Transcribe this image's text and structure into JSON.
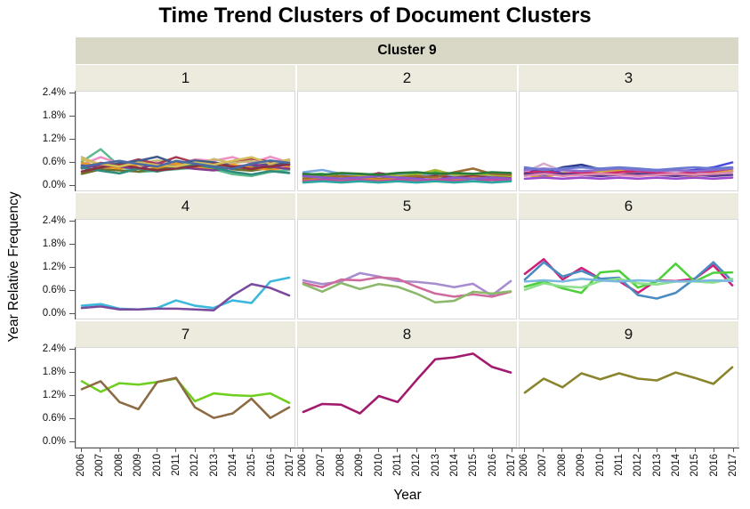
{
  "title": "Time Trend Clusters of Document Clusters",
  "chart_data": {
    "type": "line",
    "title": "Time Trend Clusters of Document Clusters",
    "facet_label": "Cluster 9",
    "xlabel": "Year",
    "ylabel": "Year Relative Frequency",
    "layout": "3x3 small multiples, shared axes, no gridlines, legend none",
    "x": [
      2006,
      2007,
      2008,
      2009,
      2010,
      2011,
      2012,
      2013,
      2014,
      2015,
      2016,
      2017
    ],
    "yticks": [
      "2.4%",
      "1.8%",
      "1.2%",
      "0.6%",
      "0.0%"
    ],
    "ylim": [
      0.0,
      2.4
    ],
    "y_unit": "percent",
    "panels": [
      {
        "label": "1",
        "series": [
          {
            "color": "#5eba8f",
            "values": [
              0.6,
              0.93,
              0.48,
              0.33,
              0.36,
              0.4,
              0.44,
              0.4,
              0.27,
              0.22,
              0.33,
              0.38
            ]
          },
          {
            "color": "#ef8fc4",
            "values": [
              0.52,
              0.72,
              0.55,
              0.6,
              0.57,
              0.5,
              0.66,
              0.62,
              0.72,
              0.56,
              0.73,
              0.58
            ]
          },
          {
            "color": "#c9b873",
            "values": [
              0.72,
              0.5,
              0.6,
              0.55,
              0.63,
              0.57,
              0.5,
              0.67,
              0.56,
              0.62,
              0.47,
              0.63
            ]
          },
          {
            "color": "#a83a52",
            "values": [
              0.45,
              0.57,
              0.52,
              0.66,
              0.54,
              0.72,
              0.58,
              0.5,
              0.62,
              0.68,
              0.6,
              0.53
            ]
          },
          {
            "color": "#3d5c8c",
            "values": [
              0.5,
              0.44,
              0.56,
              0.62,
              0.73,
              0.55,
              0.63,
              0.58,
              0.5,
              0.46,
              0.56,
              0.52
            ]
          },
          {
            "color": "#6e6e28",
            "values": [
              0.28,
              0.4,
              0.37,
              0.34,
              0.42,
              0.47,
              0.44,
              0.52,
              0.4,
              0.36,
              0.44,
              0.42
            ]
          },
          {
            "color": "#e89820",
            "values": [
              0.57,
              0.47,
              0.42,
              0.52,
              0.44,
              0.55,
              0.47,
              0.41,
              0.52,
              0.44,
              0.38,
              0.46
            ]
          },
          {
            "color": "#833b8f",
            "values": [
              0.42,
              0.52,
              0.47,
              0.41,
              0.55,
              0.47,
              0.41,
              0.37,
              0.45,
              0.53,
              0.47,
              0.41
            ]
          },
          {
            "color": "#2f8c7d",
            "values": [
              0.44,
              0.36,
              0.29,
              0.42,
              0.34,
              0.45,
              0.52,
              0.44,
              0.33,
              0.26,
              0.35,
              0.3
            ]
          },
          {
            "color": "#8c2f42",
            "values": [
              0.34,
              0.45,
              0.52,
              0.44,
              0.37,
              0.42,
              0.48,
              0.55,
              0.47,
              0.41,
              0.48,
              0.52
            ]
          },
          {
            "color": "#d3bd58",
            "values": [
              0.66,
              0.54,
              0.47,
              0.58,
              0.51,
              0.47,
              0.58,
              0.52,
              0.62,
              0.72,
              0.54,
              0.66
            ]
          },
          {
            "color": "#4b6ba3",
            "values": [
              0.47,
              0.55,
              0.62,
              0.54,
              0.47,
              0.62,
              0.55,
              0.47,
              0.41,
              0.55,
              0.63,
              0.57
            ]
          }
        ]
      },
      {
        "label": "2",
        "series": [
          {
            "color": "#2fae3c",
            "values": [
              0.25,
              0.28,
              0.22,
              0.25,
              0.28,
              0.22,
              0.28,
              0.32,
              0.25,
              0.28,
              0.25,
              0.28
            ]
          },
          {
            "color": "#1f9e8e",
            "values": [
              0.12,
              0.15,
              0.12,
              0.15,
              0.12,
              0.15,
              0.12,
              0.1,
              0.12,
              0.15,
              0.12,
              0.12
            ]
          },
          {
            "color": "#4fd0d0",
            "values": [
              0.18,
              0.22,
              0.18,
              0.15,
              0.22,
              0.28,
              0.18,
              0.22,
              0.18,
              0.22,
              0.18,
              0.15
            ]
          },
          {
            "color": "#7aa8e0",
            "values": [
              0.32,
              0.38,
              0.28,
              0.25,
              0.22,
              0.25,
              0.22,
              0.25,
              0.22,
              0.25,
              0.22,
              0.25
            ]
          },
          {
            "color": "#8c3a4a",
            "values": [
              0.22,
              0.18,
              0.22,
              0.18,
              0.3,
              0.22,
              0.18,
              0.22,
              0.18,
              0.22,
              0.18,
              0.2
            ]
          },
          {
            "color": "#a8b832",
            "values": [
              0.2,
              0.25,
              0.2,
              0.22,
              0.25,
              0.22,
              0.25,
              0.38,
              0.25,
              0.28,
              0.25,
              0.22
            ]
          },
          {
            "color": "#9c6b2f",
            "values": [
              0.15,
              0.18,
              0.22,
              0.18,
              0.15,
              0.18,
              0.22,
              0.18,
              0.32,
              0.42,
              0.28,
              0.25
            ]
          },
          {
            "color": "#cf8c2a",
            "values": [
              0.1,
              0.15,
              0.12,
              0.18,
              0.12,
              0.15,
              0.1,
              0.15,
              0.12,
              0.18,
              0.15,
              0.12
            ]
          },
          {
            "color": "#8c5acf",
            "values": [
              0.22,
              0.18,
              0.15,
              0.18,
              0.22,
              0.18,
              0.15,
              0.12,
              0.18,
              0.15,
              0.18,
              0.15
            ]
          },
          {
            "color": "#c24a9e",
            "values": [
              0.08,
              0.12,
              0.08,
              0.12,
              0.08,
              0.12,
              0.08,
              0.12,
              0.1,
              0.08,
              0.12,
              0.1
            ]
          },
          {
            "color": "#2a7a3c",
            "values": [
              0.28,
              0.25,
              0.3,
              0.28,
              0.25,
              0.3,
              0.32,
              0.28,
              0.3,
              0.28,
              0.32,
              0.3
            ]
          },
          {
            "color": "#2aa8a0",
            "values": [
              0.05,
              0.08,
              0.05,
              0.08,
              0.05,
              0.08,
              0.05,
              0.08,
              0.05,
              0.08,
              0.05,
              0.08
            ]
          }
        ]
      },
      {
        "label": "3",
        "series": [
          {
            "color": "#4a4ae0",
            "values": [
              0.35,
              0.3,
              0.35,
              0.28,
              0.35,
              0.4,
              0.35,
              0.3,
              0.35,
              0.38,
              0.45,
              0.58
            ]
          },
          {
            "color": "#2a3a8c",
            "values": [
              0.4,
              0.32,
              0.45,
              0.52,
              0.4,
              0.38,
              0.35,
              0.38,
              0.35,
              0.32,
              0.38,
              0.35
            ]
          },
          {
            "color": "#d4aed0",
            "values": [
              0.32,
              0.55,
              0.35,
              0.3,
              0.32,
              0.35,
              0.32,
              0.3,
              0.32,
              0.35,
              0.32,
              0.38
            ]
          },
          {
            "color": "#d0a82a",
            "values": [
              0.25,
              0.18,
              0.3,
              0.25,
              0.35,
              0.38,
              0.22,
              0.28,
              0.25,
              0.22,
              0.3,
              0.35
            ]
          },
          {
            "color": "#cf2a6e",
            "values": [
              0.3,
              0.35,
              0.28,
              0.32,
              0.28,
              0.32,
              0.35,
              0.3,
              0.28,
              0.32,
              0.35,
              0.42
            ]
          },
          {
            "color": "#8c6ccf",
            "values": [
              0.38,
              0.42,
              0.38,
              0.35,
              0.38,
              0.42,
              0.38,
              0.35,
              0.38,
              0.35,
              0.38,
              0.42
            ]
          },
          {
            "color": "#5a3a8c",
            "values": [
              0.28,
              0.25,
              0.28,
              0.25,
              0.22,
              0.25,
              0.28,
              0.25,
              0.22,
              0.25,
              0.22,
              0.25
            ]
          },
          {
            "color": "#e08cb0",
            "values": [
              0.22,
              0.28,
              0.22,
              0.25,
              0.28,
              0.25,
              0.22,
              0.25,
              0.28,
              0.25,
              0.28,
              0.32
            ]
          },
          {
            "color": "#6a7acf",
            "values": [
              0.45,
              0.38,
              0.42,
              0.45,
              0.42,
              0.45,
              0.42,
              0.38,
              0.42,
              0.45,
              0.42,
              0.45
            ]
          },
          {
            "color": "#9c4acf",
            "values": [
              0.15,
              0.18,
              0.15,
              0.18,
              0.15,
              0.18,
              0.15,
              0.18,
              0.15,
              0.18,
              0.15,
              0.18
            ]
          }
        ]
      },
      {
        "label": "4",
        "series": [
          {
            "color": "#3cb8dc",
            "values": [
              0.18,
              0.22,
              0.1,
              0.08,
              0.12,
              0.32,
              0.18,
              0.12,
              0.32,
              0.25,
              0.82,
              0.92
            ]
          },
          {
            "color": "#7a4a9c",
            "values": [
              0.12,
              0.16,
              0.08,
              0.08,
              0.1,
              0.1,
              0.08,
              0.06,
              0.45,
              0.75,
              0.65,
              0.45
            ]
          }
        ]
      },
      {
        "label": "5",
        "series": [
          {
            "color": "#a88cd0",
            "values": [
              0.85,
              0.75,
              0.82,
              1.04,
              0.95,
              0.83,
              0.81,
              0.76,
              0.67,
              0.76,
              0.45,
              0.83
            ]
          },
          {
            "color": "#cf6a9c",
            "values": [
              0.78,
              0.67,
              0.87,
              0.85,
              0.93,
              0.89,
              0.68,
              0.5,
              0.42,
              0.48,
              0.42,
              0.55
            ]
          },
          {
            "color": "#8cb86a",
            "values": [
              0.75,
              0.55,
              0.78,
              0.62,
              0.75,
              0.68,
              0.5,
              0.27,
              0.31,
              0.55,
              0.5,
              0.56
            ]
          }
        ]
      },
      {
        "label": "6",
        "series": [
          {
            "color": "#cf1f7a",
            "values": [
              1.02,
              1.41,
              0.87,
              1.18,
              0.89,
              0.83,
              0.52,
              0.85,
              0.83,
              0.89,
              1.25,
              0.72
            ]
          },
          {
            "color": "#4a8cc2",
            "values": [
              0.87,
              1.33,
              0.95,
              1.1,
              0.89,
              0.92,
              0.46,
              0.37,
              0.52,
              0.89,
              1.33,
              0.83
            ]
          },
          {
            "color": "#4ecf3c",
            "values": [
              0.68,
              0.82,
              0.64,
              0.52,
              1.06,
              1.1,
              0.66,
              0.82,
              1.29,
              0.82,
              1.05,
              1.06
            ]
          },
          {
            "color": "#8ce08c",
            "values": [
              0.6,
              0.77,
              0.69,
              0.66,
              0.83,
              0.89,
              0.77,
              0.74,
              0.82,
              0.82,
              0.79,
              0.89
            ]
          },
          {
            "color": "#7ab8e0",
            "values": [
              0.82,
              0.85,
              0.82,
              0.89,
              0.85,
              0.82,
              0.85,
              0.83,
              0.82,
              0.83,
              0.85,
              0.83
            ]
          }
        ]
      },
      {
        "label": "7",
        "series": [
          {
            "color": "#6ecf1f",
            "values": [
              1.57,
              1.29,
              1.52,
              1.48,
              1.55,
              1.64,
              1.04,
              1.25,
              1.2,
              1.18,
              1.25,
              1.0
            ]
          },
          {
            "color": "#8c6a42",
            "values": [
              1.36,
              1.57,
              1.02,
              0.83,
              1.55,
              1.66,
              0.88,
              0.6,
              0.72,
              1.11,
              0.6,
              0.88
            ]
          }
        ]
      },
      {
        "label": "8",
        "series": [
          {
            "color": "#a21a6d",
            "values": [
              0.76,
              0.97,
              0.95,
              0.72,
              1.18,
              1.02,
              1.6,
              2.15,
              2.2,
              2.3,
              1.95,
              1.8
            ]
          }
        ]
      },
      {
        "label": "9",
        "series": [
          {
            "color": "#8a842c",
            "values": [
              1.27,
              1.64,
              1.41,
              1.78,
              1.62,
              1.78,
              1.64,
              1.59,
              1.8,
              1.66,
              1.5,
              1.94
            ]
          }
        ]
      }
    ]
  },
  "colors": {
    "outer_strip": "#d9d8c6",
    "inner_strip": "#edebde",
    "panel_border": "#d8d8d4",
    "axis": "#555555",
    "background": "#ffffff"
  }
}
